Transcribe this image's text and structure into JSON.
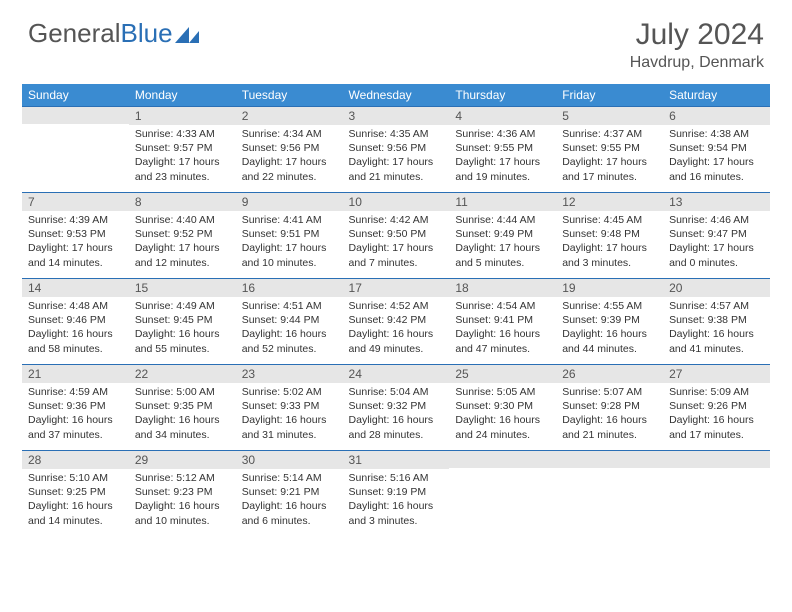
{
  "brand": {
    "part1": "General",
    "part2": "Blue"
  },
  "title": {
    "month": "July 2024",
    "location": "Havdrup, Denmark"
  },
  "colors": {
    "header_bg": "#3a8bd1",
    "daynum_bg": "#e6e6e6",
    "border": "#2a6fb5",
    "text": "#333333",
    "muted": "#555555"
  },
  "day_headers": [
    "Sunday",
    "Monday",
    "Tuesday",
    "Wednesday",
    "Thursday",
    "Friday",
    "Saturday"
  ],
  "weeks": [
    [
      {
        "num": "",
        "lines": [
          "",
          "",
          ""
        ]
      },
      {
        "num": "1",
        "lines": [
          "Sunrise: 4:33 AM",
          "Sunset: 9:57 PM",
          "Daylight: 17 hours and 23 minutes."
        ]
      },
      {
        "num": "2",
        "lines": [
          "Sunrise: 4:34 AM",
          "Sunset: 9:56 PM",
          "Daylight: 17 hours and 22 minutes."
        ]
      },
      {
        "num": "3",
        "lines": [
          "Sunrise: 4:35 AM",
          "Sunset: 9:56 PM",
          "Daylight: 17 hours and 21 minutes."
        ]
      },
      {
        "num": "4",
        "lines": [
          "Sunrise: 4:36 AM",
          "Sunset: 9:55 PM",
          "Daylight: 17 hours and 19 minutes."
        ]
      },
      {
        "num": "5",
        "lines": [
          "Sunrise: 4:37 AM",
          "Sunset: 9:55 PM",
          "Daylight: 17 hours and 17 minutes."
        ]
      },
      {
        "num": "6",
        "lines": [
          "Sunrise: 4:38 AM",
          "Sunset: 9:54 PM",
          "Daylight: 17 hours and 16 minutes."
        ]
      }
    ],
    [
      {
        "num": "7",
        "lines": [
          "Sunrise: 4:39 AM",
          "Sunset: 9:53 PM",
          "Daylight: 17 hours and 14 minutes."
        ]
      },
      {
        "num": "8",
        "lines": [
          "Sunrise: 4:40 AM",
          "Sunset: 9:52 PM",
          "Daylight: 17 hours and 12 minutes."
        ]
      },
      {
        "num": "9",
        "lines": [
          "Sunrise: 4:41 AM",
          "Sunset: 9:51 PM",
          "Daylight: 17 hours and 10 minutes."
        ]
      },
      {
        "num": "10",
        "lines": [
          "Sunrise: 4:42 AM",
          "Sunset: 9:50 PM",
          "Daylight: 17 hours and 7 minutes."
        ]
      },
      {
        "num": "11",
        "lines": [
          "Sunrise: 4:44 AM",
          "Sunset: 9:49 PM",
          "Daylight: 17 hours and 5 minutes."
        ]
      },
      {
        "num": "12",
        "lines": [
          "Sunrise: 4:45 AM",
          "Sunset: 9:48 PM",
          "Daylight: 17 hours and 3 minutes."
        ]
      },
      {
        "num": "13",
        "lines": [
          "Sunrise: 4:46 AM",
          "Sunset: 9:47 PM",
          "Daylight: 17 hours and 0 minutes."
        ]
      }
    ],
    [
      {
        "num": "14",
        "lines": [
          "Sunrise: 4:48 AM",
          "Sunset: 9:46 PM",
          "Daylight: 16 hours and 58 minutes."
        ]
      },
      {
        "num": "15",
        "lines": [
          "Sunrise: 4:49 AM",
          "Sunset: 9:45 PM",
          "Daylight: 16 hours and 55 minutes."
        ]
      },
      {
        "num": "16",
        "lines": [
          "Sunrise: 4:51 AM",
          "Sunset: 9:44 PM",
          "Daylight: 16 hours and 52 minutes."
        ]
      },
      {
        "num": "17",
        "lines": [
          "Sunrise: 4:52 AM",
          "Sunset: 9:42 PM",
          "Daylight: 16 hours and 49 minutes."
        ]
      },
      {
        "num": "18",
        "lines": [
          "Sunrise: 4:54 AM",
          "Sunset: 9:41 PM",
          "Daylight: 16 hours and 47 minutes."
        ]
      },
      {
        "num": "19",
        "lines": [
          "Sunrise: 4:55 AM",
          "Sunset: 9:39 PM",
          "Daylight: 16 hours and 44 minutes."
        ]
      },
      {
        "num": "20",
        "lines": [
          "Sunrise: 4:57 AM",
          "Sunset: 9:38 PM",
          "Daylight: 16 hours and 41 minutes."
        ]
      }
    ],
    [
      {
        "num": "21",
        "lines": [
          "Sunrise: 4:59 AM",
          "Sunset: 9:36 PM",
          "Daylight: 16 hours and 37 minutes."
        ]
      },
      {
        "num": "22",
        "lines": [
          "Sunrise: 5:00 AM",
          "Sunset: 9:35 PM",
          "Daylight: 16 hours and 34 minutes."
        ]
      },
      {
        "num": "23",
        "lines": [
          "Sunrise: 5:02 AM",
          "Sunset: 9:33 PM",
          "Daylight: 16 hours and 31 minutes."
        ]
      },
      {
        "num": "24",
        "lines": [
          "Sunrise: 5:04 AM",
          "Sunset: 9:32 PM",
          "Daylight: 16 hours and 28 minutes."
        ]
      },
      {
        "num": "25",
        "lines": [
          "Sunrise: 5:05 AM",
          "Sunset: 9:30 PM",
          "Daylight: 16 hours and 24 minutes."
        ]
      },
      {
        "num": "26",
        "lines": [
          "Sunrise: 5:07 AM",
          "Sunset: 9:28 PM",
          "Daylight: 16 hours and 21 minutes."
        ]
      },
      {
        "num": "27",
        "lines": [
          "Sunrise: 5:09 AM",
          "Sunset: 9:26 PM",
          "Daylight: 16 hours and 17 minutes."
        ]
      }
    ],
    [
      {
        "num": "28",
        "lines": [
          "Sunrise: 5:10 AM",
          "Sunset: 9:25 PM",
          "Daylight: 16 hours and 14 minutes."
        ]
      },
      {
        "num": "29",
        "lines": [
          "Sunrise: 5:12 AM",
          "Sunset: 9:23 PM",
          "Daylight: 16 hours and 10 minutes."
        ]
      },
      {
        "num": "30",
        "lines": [
          "Sunrise: 5:14 AM",
          "Sunset: 9:21 PM",
          "Daylight: 16 hours and 6 minutes."
        ]
      },
      {
        "num": "31",
        "lines": [
          "Sunrise: 5:16 AM",
          "Sunset: 9:19 PM",
          "Daylight: 16 hours and 3 minutes."
        ]
      },
      {
        "num": "",
        "lines": [
          "",
          "",
          ""
        ]
      },
      {
        "num": "",
        "lines": [
          "",
          "",
          ""
        ]
      },
      {
        "num": "",
        "lines": [
          "",
          "",
          ""
        ]
      }
    ]
  ]
}
